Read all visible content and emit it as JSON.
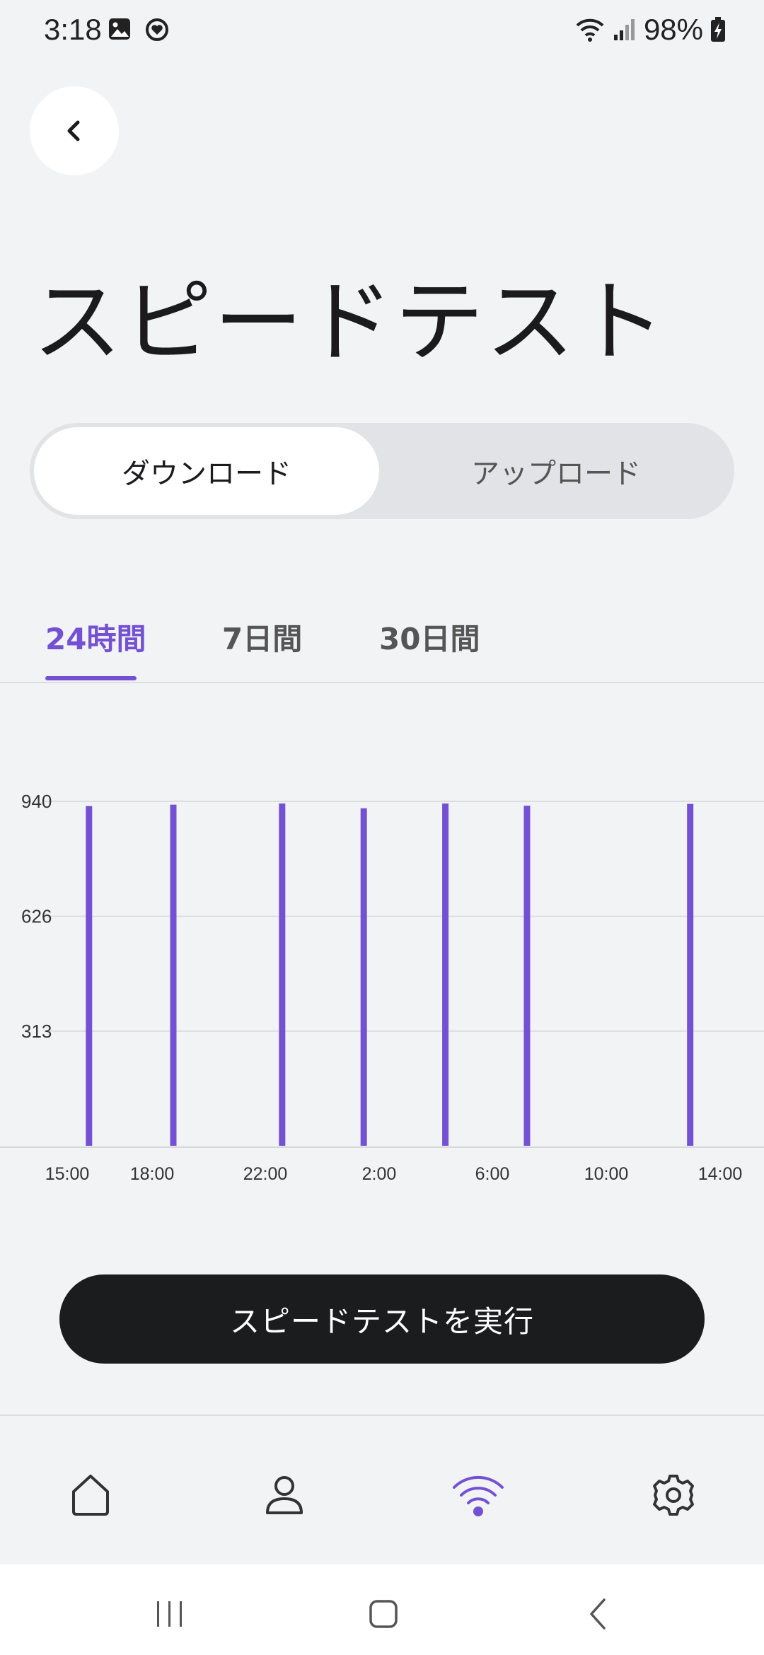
{
  "status_bar": {
    "time": "3:18",
    "battery": "98%",
    "icons_left": [
      "gallery-icon",
      "sync-icon"
    ],
    "icons_right": [
      "wifi-icon",
      "signal-icon",
      "battery-charging-icon"
    ]
  },
  "page": {
    "title": "スピードテスト"
  },
  "segment": {
    "download_label": "ダウンロード",
    "upload_label": "アップロード",
    "selected": "download"
  },
  "period_tabs": [
    {
      "label": "24時間",
      "active": true
    },
    {
      "label": "7日間",
      "active": false
    },
    {
      "label": "30日間",
      "active": false
    }
  ],
  "chart_data": {
    "type": "bar",
    "y_ticks": [
      313,
      626,
      940
    ],
    "ylim": [
      0,
      940
    ],
    "x_tick_labels": [
      "15:00",
      "18:00",
      "22:00",
      "2:00",
      "6:00",
      "10:00",
      "14:00"
    ],
    "bar_color": "#7451d3",
    "x_hours_range": [
      15,
      39
    ],
    "points": [
      {
        "hour": 15.8,
        "value": 927
      },
      {
        "hour": 18.9,
        "value": 931
      },
      {
        "hour": 22.9,
        "value": 934
      },
      {
        "hour": 25.9,
        "value": 921
      },
      {
        "hour": 28.9,
        "value": 934
      },
      {
        "hour": 31.9,
        "value": 928
      },
      {
        "hour": 37.9,
        "value": 933
      }
    ]
  },
  "actions": {
    "run_label": "スピードテストを実行"
  },
  "bottom_nav": [
    {
      "icon": "home-icon",
      "active": false
    },
    {
      "icon": "profile-icon",
      "active": false
    },
    {
      "icon": "wifi-icon",
      "active": true
    },
    {
      "icon": "settings-icon",
      "active": false
    }
  ],
  "colors": {
    "accent": "#7451d3",
    "background": "#f2f3f5",
    "button_dark": "#1b1c1e"
  }
}
